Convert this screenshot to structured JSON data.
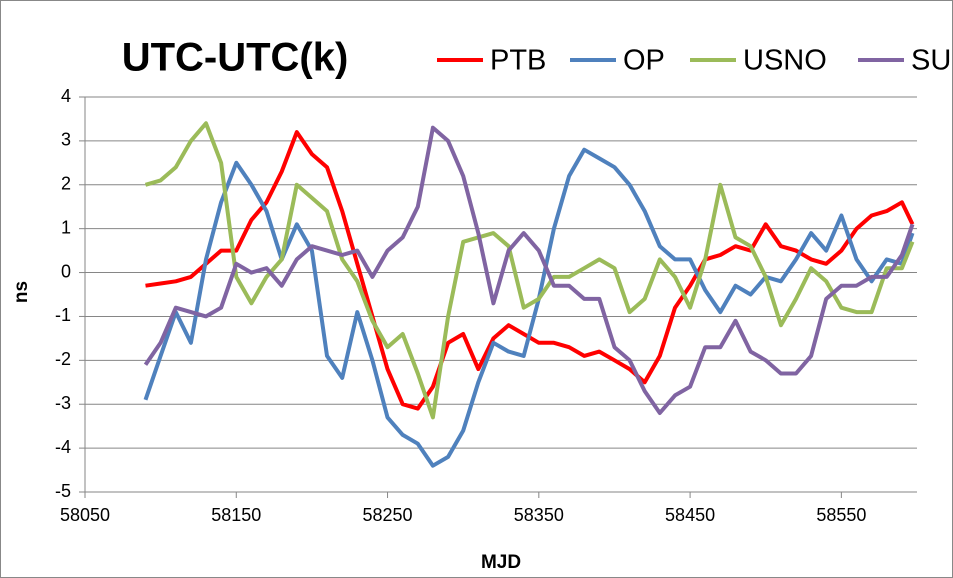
{
  "chart_data": {
    "type": "line",
    "title": "UTC-UTC(k)",
    "x_label": "MJD",
    "y_label": "ns",
    "xlim": [
      58050,
      58600
    ],
    "xticks": [
      58050,
      58150,
      58250,
      58350,
      58450,
      58550
    ],
    "ylim": [
      -5,
      4
    ],
    "yticks": [
      -5,
      -4,
      -3,
      -2,
      -1,
      0,
      1,
      2,
      3,
      4
    ],
    "grid": true,
    "x": [
      58090,
      58100,
      58110,
      58120,
      58130,
      58140,
      58150,
      58160,
      58170,
      58180,
      58190,
      58200,
      58210,
      58220,
      58230,
      58240,
      58250,
      58260,
      58270,
      58280,
      58290,
      58300,
      58310,
      58320,
      58330,
      58340,
      58350,
      58360,
      58370,
      58380,
      58390,
      58400,
      58410,
      58420,
      58430,
      58440,
      58450,
      58460,
      58470,
      58480,
      58490,
      58500,
      58510,
      58520,
      58530,
      58540,
      58550,
      58560,
      58570,
      58580,
      58590,
      58597
    ],
    "series": [
      {
        "name": "PTB",
        "color": "#ff0000",
        "values": [
          -0.3,
          -0.25,
          -0.2,
          -0.1,
          0.2,
          0.5,
          0.5,
          1.2,
          1.6,
          2.3,
          3.2,
          2.7,
          2.4,
          1.4,
          0.2,
          -1.0,
          -2.2,
          -3.0,
          -3.1,
          -2.6,
          -1.6,
          -1.4,
          -2.2,
          -1.5,
          -1.2,
          -1.4,
          -1.6,
          -1.6,
          -1.7,
          -1.9,
          -1.8,
          -2.0,
          -2.2,
          -2.5,
          -1.9,
          -0.8,
          -0.3,
          0.3,
          0.4,
          0.6,
          0.5,
          1.1,
          0.6,
          0.5,
          0.3,
          0.2,
          0.5,
          1.0,
          1.3,
          1.4,
          1.6,
          1.1
        ]
      },
      {
        "name": "OP",
        "color": "#4f81bd",
        "values": [
          -2.9,
          -1.9,
          -0.9,
          -1.6,
          0.3,
          1.6,
          2.5,
          2.0,
          1.4,
          0.3,
          1.1,
          0.5,
          -1.9,
          -2.4,
          -0.9,
          -2.0,
          -3.3,
          -3.7,
          -3.9,
          -4.4,
          -4.2,
          -3.6,
          -2.5,
          -1.6,
          -1.8,
          -1.9,
          -0.6,
          1.0,
          2.2,
          2.8,
          2.6,
          2.4,
          2.0,
          1.4,
          0.6,
          0.3,
          0.3,
          -0.4,
          -0.9,
          -0.3,
          -0.5,
          -0.1,
          -0.2,
          0.3,
          0.9,
          0.5,
          1.3,
          0.3,
          -0.2,
          0.3,
          0.2,
          0.9
        ]
      },
      {
        "name": "USNO",
        "color": "#9bbb59",
        "values": [
          2.0,
          2.1,
          2.4,
          3.0,
          3.4,
          2.5,
          -0.1,
          -0.7,
          -0.1,
          0.3,
          2.0,
          1.7,
          1.4,
          0.3,
          -0.2,
          -1.1,
          -1.7,
          -1.4,
          -2.3,
          -3.3,
          -1.0,
          0.7,
          0.8,
          0.9,
          0.6,
          -0.8,
          -0.6,
          -0.1,
          -0.1,
          0.1,
          0.3,
          0.1,
          -0.9,
          -0.6,
          0.3,
          -0.1,
          -0.8,
          0.3,
          2.0,
          0.8,
          0.6,
          -0.1,
          -1.2,
          -0.6,
          0.1,
          -0.2,
          -0.8,
          -0.9,
          -0.9,
          0.1,
          0.1,
          0.7
        ]
      },
      {
        "name": "SU",
        "color": "#8064a2",
        "values": [
          -2.1,
          -1.6,
          -0.8,
          -0.9,
          -1.0,
          -0.8,
          0.2,
          0.0,
          0.1,
          -0.3,
          0.3,
          0.6,
          0.5,
          0.4,
          0.5,
          -0.1,
          0.5,
          0.8,
          1.5,
          3.3,
          3.0,
          2.2,
          0.9,
          -0.7,
          0.5,
          0.9,
          0.5,
          -0.3,
          -0.3,
          -0.6,
          -0.6,
          -1.7,
          -2.0,
          -2.7,
          -3.2,
          -2.8,
          -2.6,
          -1.7,
          -1.7,
          -1.1,
          -1.8,
          -2.0,
          -2.3,
          -2.3,
          -1.9,
          -0.6,
          -0.3,
          -0.3,
          -0.1,
          -0.1,
          0.4,
          1.1
        ]
      }
    ]
  }
}
